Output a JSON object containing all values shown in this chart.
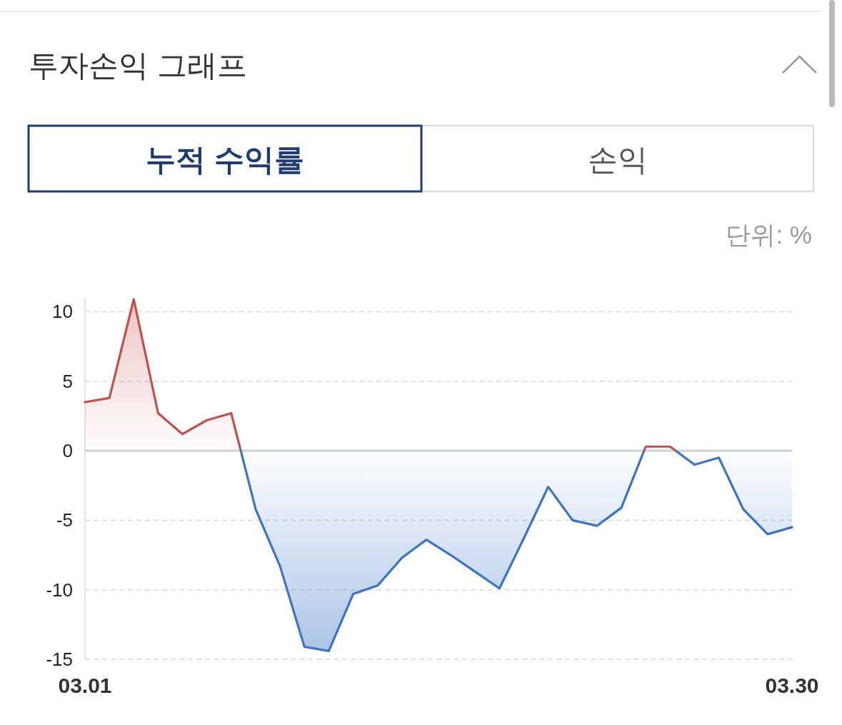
{
  "chart_data": {
    "type": "area",
    "title": "투자손익 그래프",
    "annotations": [
      "누적 수익률",
      "손익",
      "단위: %"
    ],
    "categories": [
      "03.01",
      null,
      null,
      null,
      null,
      null,
      null,
      null,
      null,
      null,
      null,
      null,
      null,
      null,
      null,
      null,
      null,
      null,
      null,
      null,
      null,
      null,
      null,
      null,
      null,
      null,
      null,
      null,
      null,
      "03.30"
    ],
    "series": [
      {
        "values": [
          3.5,
          3.8,
          10.9,
          2.7,
          1.2,
          2.2,
          2.7,
          -4.2,
          -8.3,
          -14.1,
          -14.4,
          -10.3,
          -9.7,
          -7.7,
          -6.4,
          -7.5,
          -8.7,
          -9.9,
          -6.3,
          -2.6,
          -5.0,
          -5.4,
          -4.1,
          0.3,
          0.3,
          -1.0,
          -0.5,
          -4.2,
          -6.0,
          -5.5
        ],
        "colors": [
          "#c4504e",
          "#c4504e",
          "#c4504e",
          "#c4504e",
          "#c4504e",
          "#c4504e",
          "#c4504e",
          "#3c74c4",
          "#3c74c4",
          "#3c74c4",
          "#3c74c4",
          "#3c74c4",
          "#3c74c4",
          "#3c74c4",
          "#3c74c4",
          "#3c74c4",
          "#3c74c4",
          "#3c74c4",
          "#3c74c4",
          "#3c74c4",
          "#3c74c4",
          "#3c74c4",
          "#3c74c4",
          "#c4504e",
          "#c4504e",
          "#3c74c4",
          "#3c74c4",
          "#3c74c4",
          "#3c74c4",
          "#3c74c4"
        ]
      }
    ],
    "ylim": [
      -15,
      11
    ],
    "yticks": [
      -15,
      -10,
      -5,
      0,
      5,
      10
    ],
    "grid": "y",
    "ref_lines": [
      {
        "axis": "y",
        "value": 0,
        "color": "#d2d2d2"
      }
    ]
  }
}
